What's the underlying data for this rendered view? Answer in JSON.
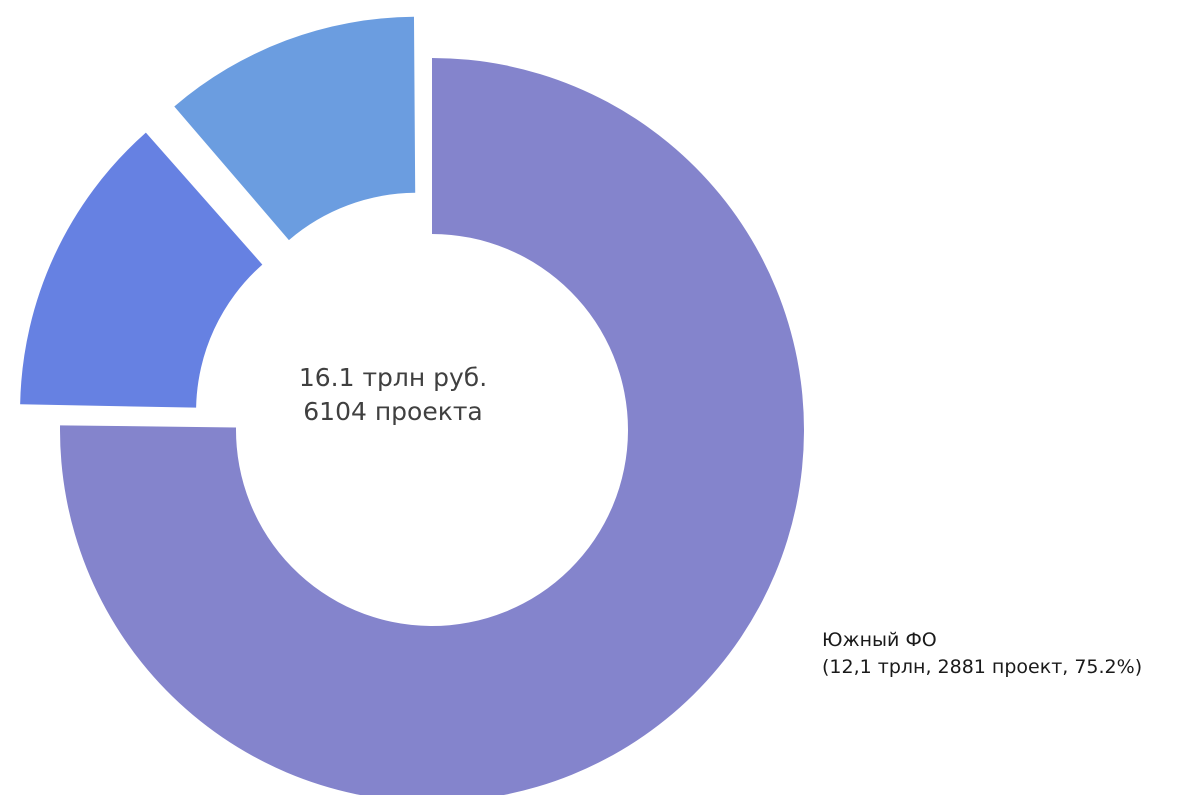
{
  "chart_data": {
    "type": "pie",
    "variant": "donut",
    "center_text": [
      "16.1 трлн руб.",
      "6104 проекта"
    ],
    "slices": [
      {
        "value": 75.2,
        "color": "#8484cc",
        "exploded": false,
        "label": "Южный ФО",
        "detail": "(12,1 трлн, 2881 проект, 75.2%)"
      },
      {
        "value": 13.4,
        "color": "#6681e2",
        "exploded": true
      },
      {
        "value": 11.4,
        "color": "#6b9de0",
        "exploded": true
      }
    ]
  }
}
